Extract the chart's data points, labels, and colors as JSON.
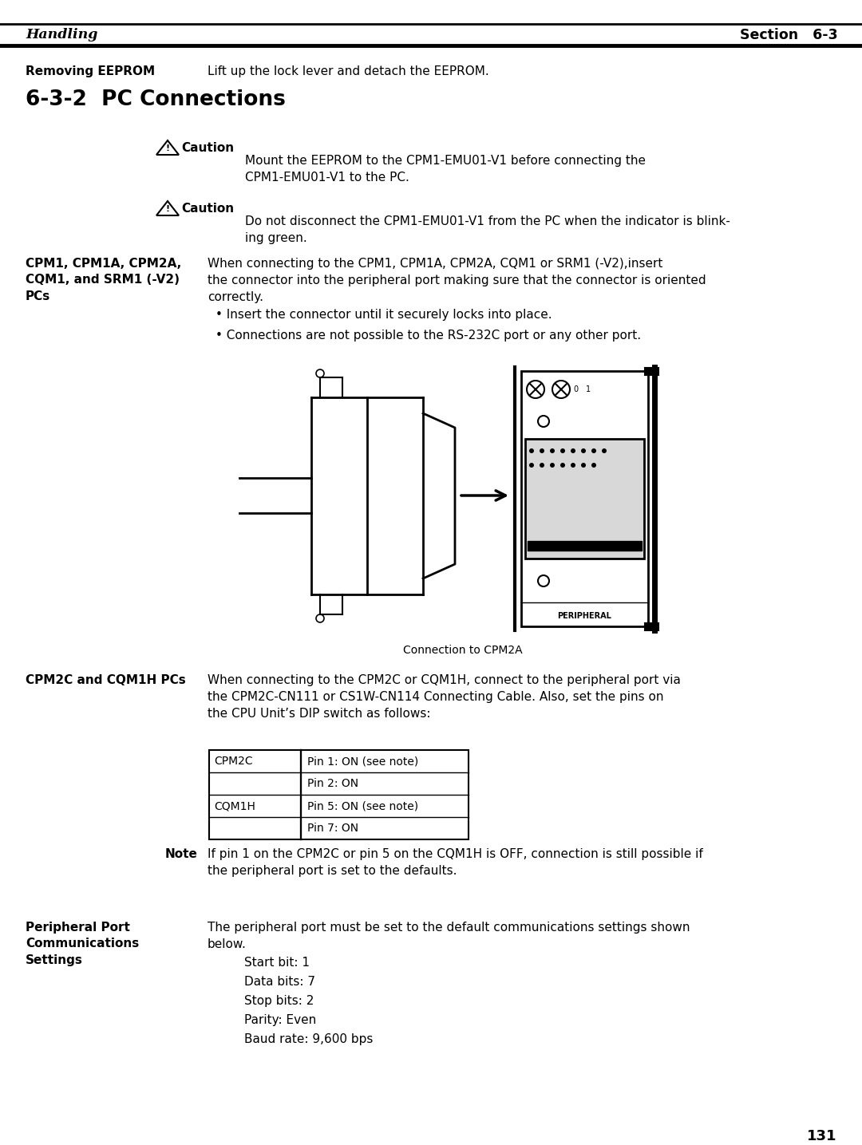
{
  "header_left": "Handling",
  "header_right": "Section   6-3",
  "removing_eeprom_label": "Removing EEPROM",
  "removing_eeprom_text": "Lift up the lock lever and detach the EEPROM.",
  "section_title": "6-3-2  PC Connections",
  "caution1_text": "Mount the EEPROM to the CPM1-EMU01-V1 before connecting the\nCPM1-EMU01-V1 to the PC.",
  "caution2_text": "Do not disconnect the CPM1-EMU01-V1 from the PC when the indicator is blink-\ning green.",
  "cpm_label": "CPM1, CPM1A, CPM2A,\nCQM1, and SRM1 (-V2)\nPCs",
  "cpm_text": "When connecting to the CPM1, CPM1A, CPM2A, CQM1 or SRM1 (-V2),insert\nthe connector into the peripheral port making sure that the connector is oriented\ncorrectly.",
  "bullet1": "• Insert the connector until it securely locks into place.",
  "bullet2": "• Connections are not possible to the RS-232C port or any other port.",
  "diagram_caption": "Connection to CPM2A",
  "cpm2c_label": "CPM2C and CQM1H PCs",
  "cpm2c_text": "When connecting to the CPM2C or CQM1H, connect to the peripheral port via\nthe CPM2C-CN111 or CS1W-CN114 Connecting Cable. Also, set the pins on\nthe CPU Unit’s DIP switch as follows:",
  "table_data": [
    [
      "CPM2C",
      "Pin 1: ON (see note)"
    ],
    [
      "",
      "Pin 2: ON"
    ],
    [
      "CQM1H",
      "Pin 5: ON (see note)"
    ],
    [
      "",
      "Pin 7: ON"
    ]
  ],
  "note_label": "Note",
  "note_text": "If pin 1 on the CPM2C or pin 5 on the CQM1H is OFF, connection is still possible if\nthe peripheral port is set to the defaults.",
  "periph_label": "Peripheral Port\nCommunications\nSettings",
  "periph_text": "The peripheral port must be set to the default communications settings shown\nbelow.",
  "settings": [
    "Start bit: 1",
    "Data bits: 7",
    "Stop bits: 2",
    "Parity: Even",
    "Baud rate: 9,600 bps"
  ],
  "page_number": "131",
  "bg_color": "#ffffff",
  "text_color": "#000000"
}
